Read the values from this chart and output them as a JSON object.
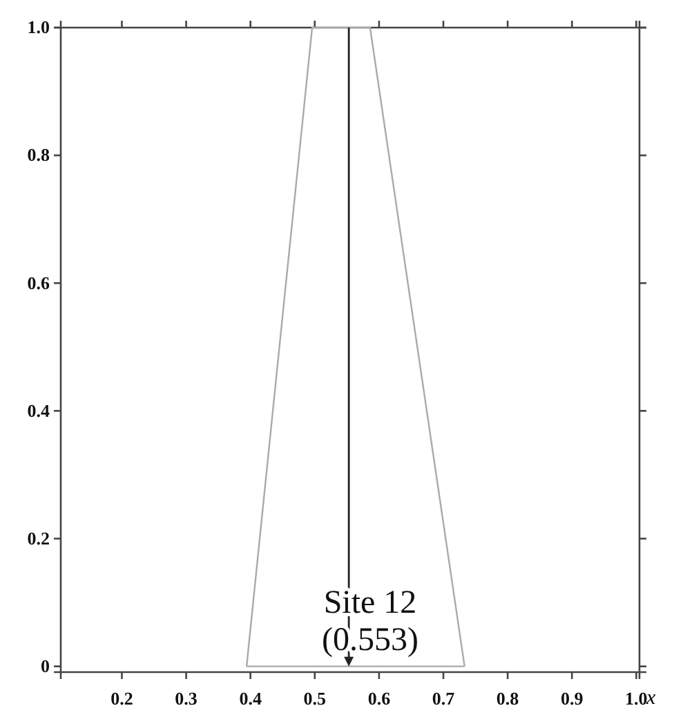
{
  "chart_data": {
    "type": "line",
    "xlabel": "x",
    "series": [
      {
        "color": "#aaaaaa",
        "x": [
          0.394,
          0.496,
          0.586,
          0.733
        ],
        "values": [
          0,
          1,
          1,
          0
        ]
      },
      {
        "color": "#aaaaaa",
        "x": [
          0.394,
          0.733
        ],
        "values": [
          0,
          0
        ]
      }
    ],
    "xlim": [
      0.105,
      1.005
    ],
    "ylim": [
      -0.009,
      1
    ],
    "xticks": [
      0.2,
      0.3,
      0.4,
      0.5,
      0.6,
      0.7,
      0.8,
      0.9,
      {
        "value": 1,
        "label": "1.0"
      }
    ],
    "yticks": [
      0,
      0.2,
      0.4,
      0.6,
      0.8,
      {
        "value": 1,
        "label": "1.0"
      }
    ],
    "ref_lines": [
      {
        "axis": "x",
        "value": 0.553,
        "color": "#222222"
      }
    ],
    "annotations": [
      "Site 12\n(0.553)"
    ],
    "grid": false,
    "marker": "none"
  }
}
